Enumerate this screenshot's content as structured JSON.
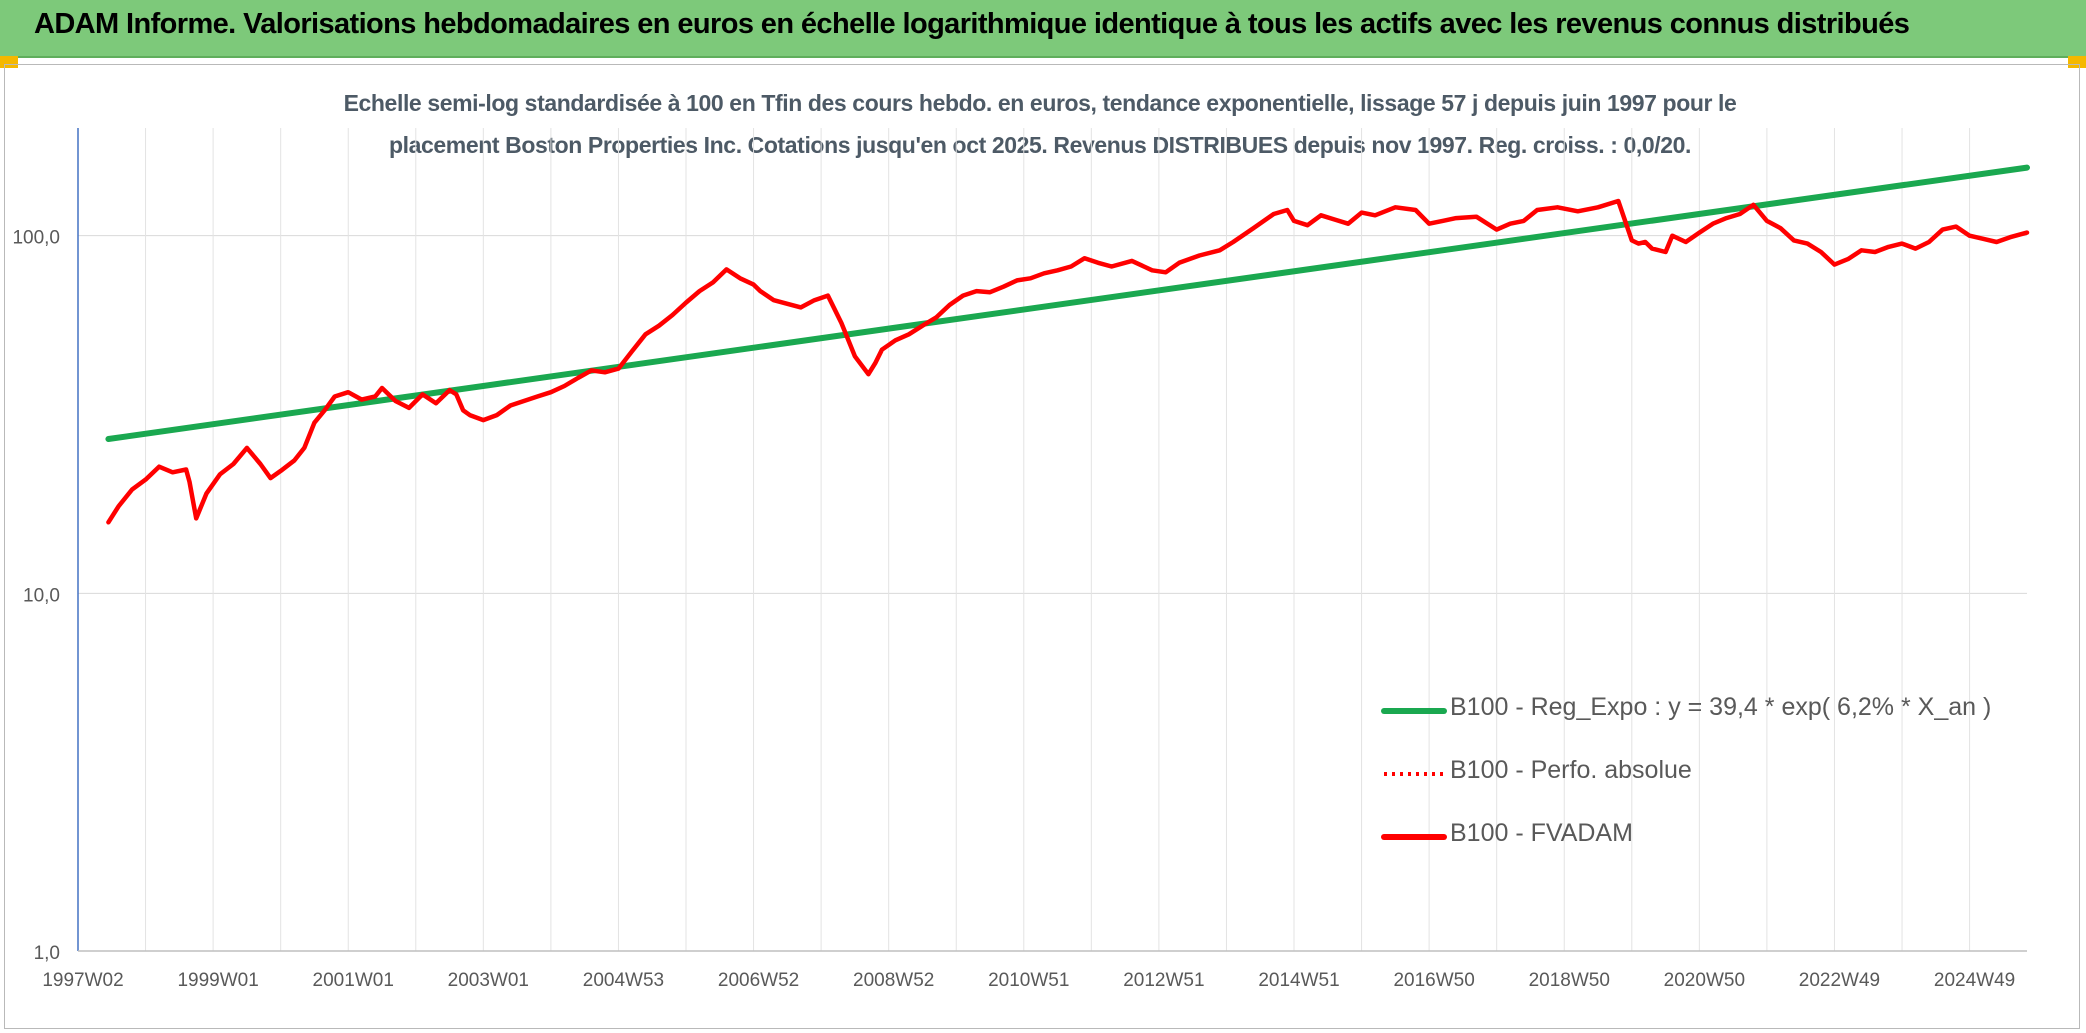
{
  "banner": {
    "title": "ADAM Informe. Valorisations hebdomadaires en euros en échelle logarithmique identique à tous les actifs avec les revenus connus distribués",
    "color": "#7dc97a"
  },
  "chart_data": {
    "type": "line",
    "title_line1": "Echelle semi-log standardisée à 100 en Tfin des cours hebdo. en euros, tendance exponentielle, lissage 57 j depuis juin 1997 pour le",
    "title_line2": "placement Boston Properties Inc. Cotations jusqu'en oct 2025. Revenus DISTRIBUES depuis nov 1997. Reg. croiss. : 0,0/20.",
    "yscale": "log",
    "ylim": [
      1,
      200
    ],
    "xlim": [
      1997.0,
      2025.85
    ],
    "y_ticks": [
      {
        "value": 1,
        "label": "1,0"
      },
      {
        "value": 10,
        "label": "10,0"
      },
      {
        "value": 100,
        "label": "100,0"
      }
    ],
    "x_ticks": [
      {
        "value": 1997.0,
        "label": "1997W02"
      },
      {
        "value": 1999.0,
        "label": "1999W01"
      },
      {
        "value": 2001.0,
        "label": "2001W01"
      },
      {
        "value": 2003.0,
        "label": "2003W01"
      },
      {
        "value": 2005.0,
        "label": "2004W53"
      },
      {
        "value": 2007.0,
        "label": "2006W52"
      },
      {
        "value": 2009.0,
        "label": "2008W52"
      },
      {
        "value": 2011.0,
        "label": "2010W51"
      },
      {
        "value": 2013.0,
        "label": "2012W51"
      },
      {
        "value": 2015.0,
        "label": "2014W51"
      },
      {
        "value": 2017.0,
        "label": "2016W50"
      },
      {
        "value": 2019.0,
        "label": "2018W50"
      },
      {
        "value": 2021.0,
        "label": "2020W50"
      },
      {
        "value": 2023.0,
        "label": "2022W49"
      },
      {
        "value": 2025.0,
        "label": "2024W49"
      }
    ],
    "grid": true,
    "legend_position": "bottom-right",
    "series": [
      {
        "name": "B100 - Reg_Expo : y = 39,4 * exp( 6,2% *  X_an )",
        "color": "#1aa850",
        "style": "solid",
        "x": [
          1997.45,
          2025.85
        ],
        "y": [
          27.0,
          155.0
        ]
      },
      {
        "name": "B100 - Perfo. absolue",
        "color": "#ff0000",
        "style": "dotted",
        "x": [],
        "y": []
      },
      {
        "name": "B100 - FVADAM",
        "color": "#ff0000",
        "style": "solid",
        "x": [
          1997.45,
          1997.6,
          1997.8,
          1998.0,
          1998.2,
          1998.4,
          1998.6,
          1998.65,
          1998.75,
          1998.9,
          1999.1,
          1999.3,
          1999.5,
          1999.7,
          1999.85,
          2000.0,
          2000.2,
          2000.35,
          2000.5,
          2000.65,
          2000.8,
          2001.0,
          2001.2,
          2001.4,
          2001.5,
          2001.7,
          2001.9,
          2002.1,
          2002.3,
          2002.5,
          2002.6,
          2002.7,
          2002.8,
          2003.0,
          2003.2,
          2003.4,
          2003.6,
          2003.8,
          2004.0,
          2004.2,
          2004.4,
          2004.6,
          2004.8,
          2005.0,
          2005.2,
          2005.4,
          2005.6,
          2005.8,
          2006.0,
          2006.2,
          2006.4,
          2006.6,
          2006.8,
          2007.0,
          2007.1,
          2007.3,
          2007.5,
          2007.7,
          2007.9,
          2008.1,
          2008.3,
          2008.5,
          2008.7,
          2008.8,
          2008.9,
          2009.1,
          2009.3,
          2009.5,
          2009.7,
          2009.9,
          2010.1,
          2010.3,
          2010.5,
          2010.7,
          2010.9,
          2011.1,
          2011.3,
          2011.5,
          2011.7,
          2011.9,
          2012.1,
          2012.3,
          2012.6,
          2012.9,
          2013.1,
          2013.3,
          2013.6,
          2013.9,
          2014.1,
          2014.4,
          2014.7,
          2014.9,
          2015.0,
          2015.2,
          2015.4,
          2015.6,
          2015.8,
          2016.0,
          2016.2,
          2016.5,
          2016.8,
          2017.0,
          2017.2,
          2017.4,
          2017.7,
          2018.0,
          2018.2,
          2018.4,
          2018.6,
          2018.9,
          2019.2,
          2019.5,
          2019.8,
          2020.0,
          2020.1,
          2020.2,
          2020.3,
          2020.5,
          2020.6,
          2020.8,
          2021.0,
          2021.2,
          2021.4,
          2021.6,
          2021.8,
          2022.0,
          2022.2,
          2022.4,
          2022.6,
          2022.8,
          2023.0,
          2023.2,
          2023.4,
          2023.6,
          2023.8,
          2024.0,
          2024.2,
          2024.4,
          2024.6,
          2024.8,
          2025.0,
          2025.2,
          2025.4,
          2025.6,
          2025.85
        ],
        "y": [
          15.8,
          17.5,
          19.5,
          20.8,
          22.6,
          21.8,
          22.2,
          20.5,
          16.2,
          19.0,
          21.5,
          23.0,
          25.5,
          23.0,
          21.0,
          22.0,
          23.5,
          25.5,
          30.0,
          32.5,
          35.5,
          36.5,
          34.8,
          35.5,
          37.5,
          34.5,
          33.0,
          36.0,
          34.0,
          37.0,
          36.0,
          32.5,
          31.5,
          30.5,
          31.5,
          33.5,
          34.5,
          35.5,
          36.5,
          38.0,
          40.0,
          42.0,
          41.5,
          42.5,
          47.5,
          53.0,
          56.0,
          60.0,
          65.0,
          70.0,
          74.0,
          80.5,
          76.0,
          73.0,
          70.0,
          66.0,
          64.5,
          63.0,
          66.0,
          68.0,
          57.0,
          46.0,
          41.0,
          44.0,
          48.0,
          51.0,
          53.0,
          56.0,
          59.0,
          64.0,
          68.0,
          70.0,
          69.5,
          72.0,
          75.0,
          76.0,
          78.5,
          80.0,
          82.0,
          86.5,
          84.0,
          82.0,
          85.0,
          80.0,
          79.0,
          84.0,
          88.0,
          91.0,
          96.0,
          105.0,
          115.0,
          118.0,
          110.0,
          107.0,
          114.0,
          111.0,
          108.0,
          116.0,
          114.0,
          120.0,
          118.0,
          108.0,
          110.0,
          112.0,
          113.0,
          104.0,
          108.0,
          110.0,
          118.0,
          120.0,
          117.0,
          120.0,
          125.0,
          97.0,
          95.0,
          96.0,
          92.0,
          90.0,
          100.0,
          96.0,
          102.0,
          108.0,
          112.0,
          115.0,
          122.0,
          110.0,
          105.0,
          97.0,
          95.0,
          90.0,
          83.0,
          86.0,
          91.0,
          90.0,
          93.0,
          95.0,
          92.0,
          96.0,
          104.0,
          106.0,
          100.0,
          98.0,
          96.0,
          99.0,
          102.0
        ]
      }
    ]
  }
}
